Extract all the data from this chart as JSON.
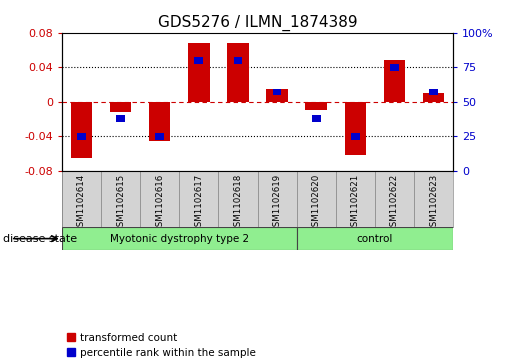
{
  "title": "GDS5276 / ILMN_1874389",
  "samples": [
    "GSM1102614",
    "GSM1102615",
    "GSM1102616",
    "GSM1102617",
    "GSM1102618",
    "GSM1102619",
    "GSM1102620",
    "GSM1102621",
    "GSM1102622",
    "GSM1102623"
  ],
  "red_values": [
    -0.065,
    -0.012,
    -0.046,
    0.068,
    0.068,
    0.015,
    -0.01,
    -0.062,
    0.048,
    0.01
  ],
  "blue_percentile": [
    25,
    38,
    25,
    80,
    80,
    57,
    38,
    25,
    75,
    57
  ],
  "groups": [
    {
      "label": "Myotonic dystrophy type 2",
      "start": 0,
      "end": 6,
      "color": "#90EE90"
    },
    {
      "label": "control",
      "start": 6,
      "end": 10,
      "color": "#90EE90"
    }
  ],
  "ylim": [
    -0.08,
    0.08
  ],
  "yticks_left": [
    -0.08,
    -0.04,
    0.0,
    0.04,
    0.08
  ],
  "ytick_left_labels": [
    "-0.08",
    "-0.04",
    "0",
    "0.04",
    "0.08"
  ],
  "yticks_right": [
    0,
    25,
    50,
    75,
    100
  ],
  "ytick_right_labels": [
    "0",
    "25",
    "50",
    "75",
    "100%"
  ],
  "bar_color_red": "#CC0000",
  "bar_color_blue": "#0000CC",
  "bg_color": "#FFFFFF",
  "plot_bg": "#FFFFFF",
  "zero_line_color": "#CC0000",
  "left_label_color": "#CC0000",
  "right_label_color": "#0000CC",
  "disease_state_label": "disease state",
  "bar_width": 0.55,
  "blue_bar_width": 0.22,
  "blue_bar_height": 0.008,
  "sample_label_bg": "#D3D3D3",
  "sample_label_border": "#888888",
  "legend_label_red": "transformed count",
  "legend_label_blue": "percentile rank within the sample"
}
